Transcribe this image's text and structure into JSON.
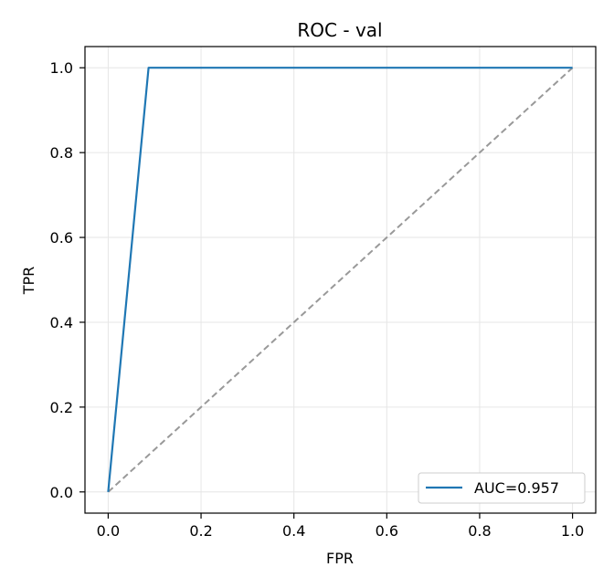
{
  "chart_data": {
    "type": "line",
    "title": "ROC - val",
    "xlabel": "FPR",
    "ylabel": "TPR",
    "xlim": [
      -0.05,
      1.05
    ],
    "ylim": [
      -0.05,
      1.05
    ],
    "xticks": [
      0.0,
      0.2,
      0.4,
      0.6,
      0.8,
      1.0
    ],
    "xtick_labels": [
      "0.0",
      "0.2",
      "0.4",
      "0.6",
      "0.8",
      "1.0"
    ],
    "yticks": [
      0.0,
      0.2,
      0.4,
      0.6,
      0.8,
      1.0
    ],
    "ytick_labels": [
      "0.0",
      "0.2",
      "0.4",
      "0.6",
      "0.8",
      "1.0"
    ],
    "grid": true,
    "legend_position": "lower-right",
    "series": [
      {
        "name": "AUC=0.957",
        "color": "#1f77b4",
        "style": "solid",
        "x": [
          0.0,
          0.087,
          1.0
        ],
        "y": [
          0.0,
          1.0,
          1.0
        ]
      },
      {
        "color": "#999999",
        "style": "dashed",
        "x": [
          0.0,
          1.0
        ],
        "y": [
          0.0,
          1.0
        ]
      }
    ]
  }
}
